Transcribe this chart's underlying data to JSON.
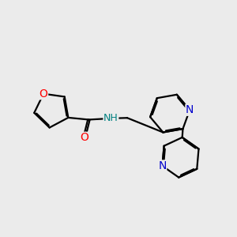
{
  "bg_color": "#ebebeb",
  "atom_colors": {
    "O": "#ff0000",
    "N_blue": "#0000cc",
    "NH": "#008080",
    "C": "#000000"
  },
  "bond_color": "#000000",
  "bond_width": 1.6,
  "dpi": 100,
  "fig_size": [
    3.0,
    3.0
  ]
}
